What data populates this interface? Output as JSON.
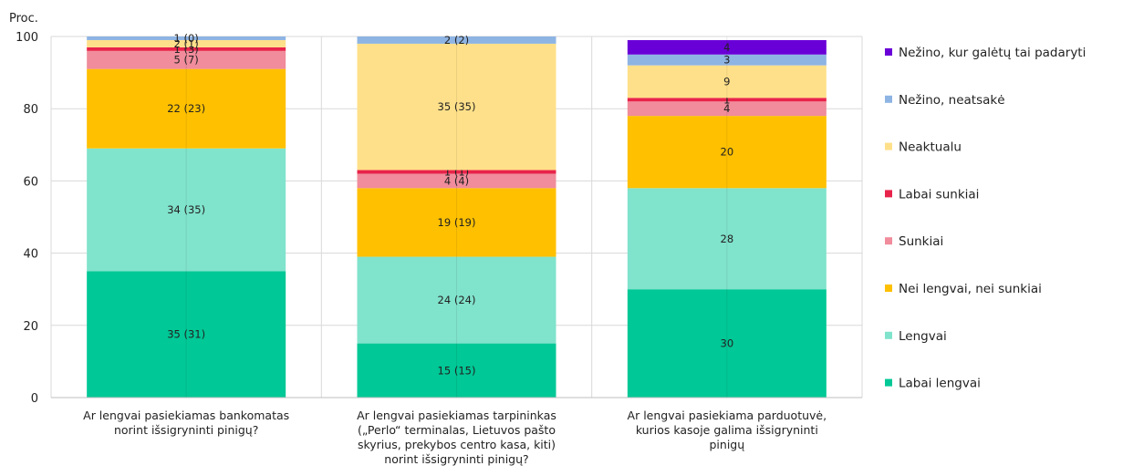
{
  "chart_data": {
    "type": "bar",
    "stacked": true,
    "y_unit_label": "Proc.",
    "ylim": [
      0,
      100
    ],
    "yticks": [
      0,
      20,
      40,
      60,
      80,
      100
    ],
    "grid": true,
    "legend_position": "right",
    "categories": [
      [
        "Ar lengvai pasiekiamas bankomatas",
        "norint išsigryninti pinigų?"
      ],
      [
        "Ar lengvai pasiekiamas tarpininkas",
        "(„Perlo“ terminalas, Lietuvos pašto",
        "skyrius, prekybos centro kasa, kiti)",
        "norint išsigryninti pinigų?"
      ],
      [
        "Ar lengvai pasiekiama parduotuvė,",
        "kurios kasoje galima išsigryninti",
        "pinigų"
      ]
    ],
    "series": [
      {
        "name": "Labai lengvai",
        "color": "#00c896",
        "values": [
          35,
          15,
          30
        ],
        "labels": [
          "35 (31)",
          "15 (15)",
          "30"
        ]
      },
      {
        "name": "Lengvai",
        "color": "#80e3cc",
        "values": [
          34,
          24,
          28
        ],
        "labels": [
          "34 (35)",
          "24 (24)",
          "28"
        ]
      },
      {
        "name": "Nei lengvai, nei sunkiai",
        "color": "#ffc000",
        "values": [
          22,
          19,
          20
        ],
        "labels": [
          "22 (23)",
          "19 (19)",
          "20"
        ]
      },
      {
        "name": "Sunkiai",
        "color": "#f08c9b",
        "values": [
          5,
          4,
          4
        ],
        "labels": [
          "5 (7)",
          "4 (4)",
          "4"
        ]
      },
      {
        "name": "Labai sunkiai",
        "color": "#e8234a",
        "values": [
          1,
          1,
          1
        ],
        "labels": [
          "1 (3)",
          "1 (1)",
          "1"
        ]
      },
      {
        "name": "Neaktualu",
        "color": "#ffe08a",
        "values": [
          2,
          35,
          9
        ],
        "labels": [
          "2 (1)",
          "35 (35)",
          "9"
        ]
      },
      {
        "name": "Nežino, neatsakė",
        "color": "#8eb4e3",
        "values": [
          1,
          2,
          3
        ],
        "labels": [
          "1 (0)",
          "2 (2)",
          "3"
        ]
      },
      {
        "name": "Nežino, kur galėtų tai padaryti",
        "color": "#6a00d8",
        "values": [
          0,
          0,
          4
        ],
        "labels": [
          "",
          "",
          "4"
        ]
      }
    ]
  }
}
